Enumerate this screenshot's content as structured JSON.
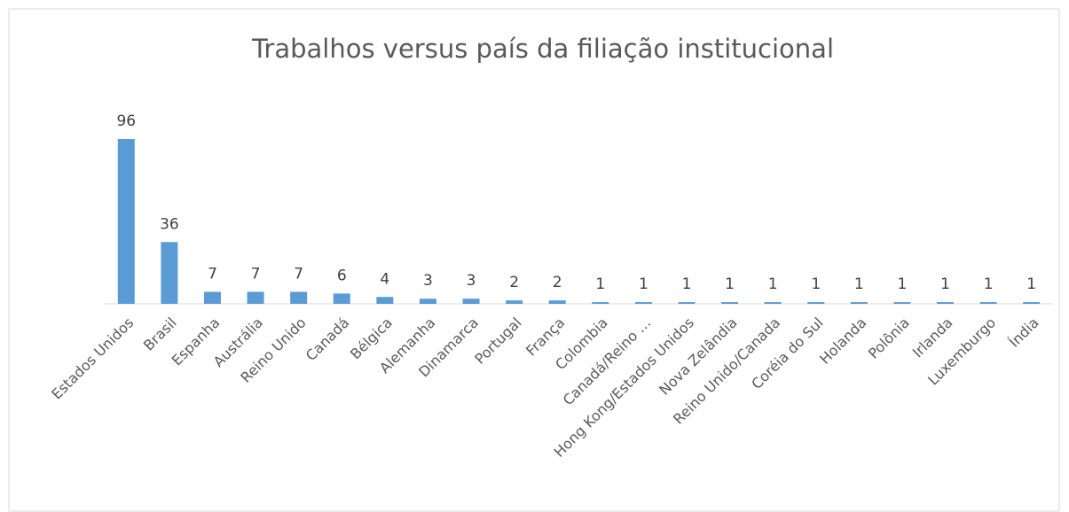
{
  "chart_data": {
    "type": "bar",
    "title": "Trabalhos versus país da filiação institucional",
    "categories": [
      "Estados Unidos",
      "Brasil",
      "Espanha",
      "Austrália",
      "Reino Unido",
      "Canadá",
      "Bélgica",
      "Alemanha",
      "Dinamarca",
      "Portugal",
      "França",
      "Colombia",
      "Canadá/Reino …",
      "Hong Kong/Estados Unidos",
      "Nova Zelândia",
      "Reino Unido/Canada",
      "Coréia do Sul",
      "Holanda",
      "Polônia",
      "Irlanda",
      "Luxemburgo",
      "Índia"
    ],
    "values": [
      96,
      36,
      7,
      7,
      7,
      6,
      4,
      3,
      3,
      2,
      2,
      1,
      1,
      1,
      1,
      1,
      1,
      1,
      1,
      1,
      1,
      1
    ],
    "color": "#5b9bd5"
  }
}
